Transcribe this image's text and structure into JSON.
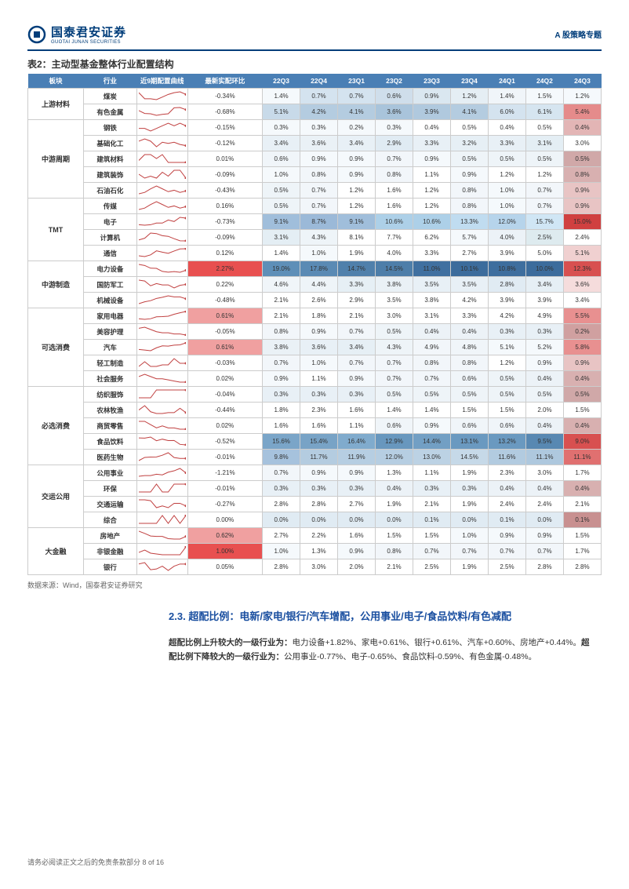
{
  "header": {
    "logo_cn": "国泰君安证券",
    "logo_en": "GUOTAI JUNAN SECURITIES",
    "right": "A 股策略专题"
  },
  "table_title": "表2：主动型基金整体行业配置结构",
  "headers": [
    "板块",
    "行业",
    "近9期配置曲线",
    "最新实配环比",
    "22Q3",
    "22Q4",
    "23Q1",
    "23Q2",
    "23Q3",
    "23Q4",
    "24Q1",
    "24Q2",
    "24Q3"
  ],
  "sectors": [
    {
      "name": "上游材料",
      "rows": [
        {
          "ind": "煤炭",
          "ratio": "-0.34%",
          "vals": [
            "1.4%",
            "0.7%",
            "0.7%",
            "0.6%",
            "0.9%",
            "1.2%",
            "1.4%",
            "1.5%",
            "1.2%"
          ],
          "cols": [
            "#f5f9fc",
            "#d4e3ef",
            "#d4e3ef",
            "#cfdeeb",
            "#dae7f0",
            "#e5eef4",
            "#f0f5f9",
            "#f5f9fc",
            "#f5f9fc"
          ],
          "rc": "#fff"
        },
        {
          "ind": "有色金属",
          "ratio": "-0.68%",
          "vals": [
            "5.1%",
            "4.2%",
            "4.1%",
            "3.6%",
            "3.9%",
            "4.1%",
            "6.0%",
            "6.1%",
            "5.4%"
          ],
          "cols": [
            "#c8dae9",
            "#b4cce0",
            "#b4cce0",
            "#a9c4db",
            "#b0c9de",
            "#b4cce0",
            "#d4e3ef",
            "#d6e5f0",
            "#e58b8b"
          ],
          "rc": "#fff"
        }
      ]
    },
    {
      "name": "中游周期",
      "rows": [
        {
          "ind": "钢铁",
          "ratio": "-0.15%",
          "vals": [
            "0.3%",
            "0.3%",
            "0.2%",
            "0.3%",
            "0.4%",
            "0.5%",
            "0.4%",
            "0.5%",
            "0.4%"
          ],
          "cols": [
            "#f5f9fc",
            "#f5f9fc",
            "#f5f9fc",
            "#f5f9fc",
            "#fff",
            "#fff",
            "#fff",
            "#fff",
            "#e3b5b5"
          ],
          "rc": "#fff"
        },
        {
          "ind": "基础化工",
          "ratio": "-0.12%",
          "vals": [
            "3.4%",
            "3.6%",
            "3.4%",
            "2.9%",
            "3.3%",
            "3.2%",
            "3.3%",
            "3.1%",
            "3.0%"
          ],
          "cols": [
            "#e8f0f6",
            "#eaf1f6",
            "#e8f0f6",
            "#e0ebf3",
            "#e8f0f6",
            "#e6eff5",
            "#e8f0f6",
            "#e4eef4",
            "#fff"
          ],
          "rc": "#fff"
        },
        {
          "ind": "建筑材料",
          "ratio": "0.01%",
          "vals": [
            "0.6%",
            "0.9%",
            "0.9%",
            "0.7%",
            "0.9%",
            "0.5%",
            "0.5%",
            "0.5%",
            "0.5%"
          ],
          "cols": [
            "#f0f5f9",
            "#f5f9fc",
            "#f5f9fc",
            "#f2f6fa",
            "#f5f9fc",
            "#eef4f8",
            "#eef4f8",
            "#eef4f8",
            "#d0a8a8"
          ],
          "rc": "#fff"
        },
        {
          "ind": "建筑装饰",
          "ratio": "-0.09%",
          "vals": [
            "1.0%",
            "0.8%",
            "0.9%",
            "0.8%",
            "1.1%",
            "0.9%",
            "1.2%",
            "1.2%",
            "0.8%"
          ],
          "cols": [
            "#f5f9fc",
            "#f2f6fa",
            "#f5f9fc",
            "#f2f6fa",
            "#fff",
            "#f5f9fc",
            "#fff",
            "#fff",
            "#d8b0b0"
          ],
          "rc": "#fff"
        },
        {
          "ind": "石油石化",
          "ratio": "-0.43%",
          "vals": [
            "0.5%",
            "0.7%",
            "1.2%",
            "1.6%",
            "1.2%",
            "0.8%",
            "1.0%",
            "0.7%",
            "0.9%"
          ],
          "cols": [
            "#eef4f8",
            "#f2f6fa",
            "#fff",
            "#fff",
            "#fff",
            "#f2f6fa",
            "#f5f9fc",
            "#f2f6fa",
            "#e8c4c4"
          ],
          "rc": "#fff"
        }
      ]
    },
    {
      "name": "TMT",
      "rows": [
        {
          "ind": "传媒",
          "ratio": "0.16%",
          "vals": [
            "0.5%",
            "0.7%",
            "1.2%",
            "1.6%",
            "1.2%",
            "0.8%",
            "1.0%",
            "0.7%",
            "0.9%"
          ],
          "cols": [
            "#eef4f8",
            "#f2f6fa",
            "#fff",
            "#fff",
            "#fff",
            "#f2f6fa",
            "#f5f9fc",
            "#f2f6fa",
            "#e8c4c4"
          ],
          "rc": "#fff"
        },
        {
          "ind": "电子",
          "ratio": "-0.73%",
          "vals": [
            "9.1%",
            "8.7%",
            "9.1%",
            "10.6%",
            "10.6%",
            "13.3%",
            "12.0%",
            "15.7%",
            "15.0%"
          ],
          "cols": [
            "#a0bedb",
            "#9bb9d8",
            "#a0bedb",
            "#add0e8",
            "#add0e8",
            "#c0dcf0",
            "#b6d4eb",
            "#d0e6f5",
            "#d04040"
          ],
          "rc": "#fff"
        },
        {
          "ind": "计算机",
          "ratio": "-0.09%",
          "vals": [
            "3.1%",
            "4.3%",
            "8.1%",
            "7.7%",
            "6.2%",
            "5.7%",
            "4.0%",
            "2.5%",
            "2.4%"
          ],
          "cols": [
            "#e4eef4",
            "#eef4f8",
            "#fff",
            "#fff",
            "#fff",
            "#f5f9fc",
            "#ecf2f7",
            "#deebef",
            "#fff"
          ],
          "rc": "#fff"
        },
        {
          "ind": "通信",
          "ratio": "0.12%",
          "vals": [
            "1.4%",
            "1.0%",
            "1.9%",
            "4.0%",
            "3.3%",
            "2.7%",
            "3.9%",
            "5.0%",
            "5.1%"
          ],
          "cols": [
            "#fff",
            "#f5f9fc",
            "#fff",
            "#fff",
            "#fff",
            "#fff",
            "#fff",
            "#fff",
            "#f0d0d0"
          ],
          "rc": "#fff"
        }
      ]
    },
    {
      "name": "中游制造",
      "rows": [
        {
          "ind": "电力设备",
          "ratio": "2.27%",
          "vals": [
            "19.0%",
            "17.8%",
            "14.7%",
            "14.5%",
            "11.0%",
            "10.1%",
            "10.8%",
            "10.0%",
            "12.3%"
          ],
          "cols": [
            "#5e8fb8",
            "#5a8ab4",
            "#5080ab",
            "#4e7ea9",
            "#4070a0",
            "#3c6c9c",
            "#3e6e9e",
            "#3c6c9c",
            "#d85050"
          ],
          "rc": "#e85050"
        },
        {
          "ind": "国防军工",
          "ratio": "0.22%",
          "vals": [
            "4.6%",
            "4.4%",
            "3.3%",
            "3.8%",
            "3.5%",
            "3.5%",
            "2.8%",
            "3.4%",
            "3.6%"
          ],
          "cols": [
            "#f0f5f9",
            "#eef4f8",
            "#e6eff5",
            "#eaf1f6",
            "#e8f0f6",
            "#e8f0f6",
            "#e0ebf3",
            "#e6eff5",
            "#f5dcdc"
          ],
          "rc": "#fff"
        },
        {
          "ind": "机械设备",
          "ratio": "-0.48%",
          "vals": [
            "2.1%",
            "2.6%",
            "2.9%",
            "3.5%",
            "3.8%",
            "4.2%",
            "3.9%",
            "3.9%",
            "3.4%"
          ],
          "cols": [
            "#fff",
            "#fff",
            "#fff",
            "#fff",
            "#fff",
            "#fff",
            "#fff",
            "#fff",
            "#fff"
          ],
          "rc": "#fff"
        }
      ]
    },
    {
      "name": "可选消费",
      "rows": [
        {
          "ind": "家用电器",
          "ratio": "0.61%",
          "vals": [
            "2.1%",
            "1.8%",
            "2.1%",
            "3.0%",
            "3.1%",
            "3.3%",
            "4.2%",
            "4.9%",
            "5.5%"
          ],
          "cols": [
            "#fff",
            "#fff",
            "#fff",
            "#fff",
            "#fff",
            "#fff",
            "#fff",
            "#fff",
            "#e89090"
          ],
          "rc": "#f0a0a0"
        },
        {
          "ind": "美容护理",
          "ratio": "-0.05%",
          "vals": [
            "0.8%",
            "0.9%",
            "0.7%",
            "0.5%",
            "0.4%",
            "0.4%",
            "0.3%",
            "0.3%",
            "0.2%"
          ],
          "cols": [
            "#f2f6fa",
            "#f5f9fc",
            "#f2f6fa",
            "#eef4f8",
            "#ecf2f7",
            "#ecf2f7",
            "#e8f0f6",
            "#e8f0f6",
            "#d0a0a0"
          ],
          "rc": "#fff"
        },
        {
          "ind": "汽车",
          "ratio": "0.61%",
          "vals": [
            "3.8%",
            "3.6%",
            "3.4%",
            "4.3%",
            "4.9%",
            "4.8%",
            "5.1%",
            "5.2%",
            "5.8%"
          ],
          "cols": [
            "#eaf1f6",
            "#e8f0f6",
            "#e6eff5",
            "#eef4f8",
            "#f2f6fa",
            "#f0f5f9",
            "#f5f9fc",
            "#f5f9fc",
            "#e89090"
          ],
          "rc": "#f0a0a0"
        },
        {
          "ind": "轻工制造",
          "ratio": "-0.03%",
          "vals": [
            "0.7%",
            "1.0%",
            "0.7%",
            "0.7%",
            "0.8%",
            "0.8%",
            "1.2%",
            "0.9%",
            "0.9%"
          ],
          "cols": [
            "#f2f6fa",
            "#f5f9fc",
            "#f2f6fa",
            "#f2f6fa",
            "#f2f6fa",
            "#f2f6fa",
            "#fff",
            "#f5f9fc",
            "#e8c4c4"
          ],
          "rc": "#fff"
        },
        {
          "ind": "社会服务",
          "ratio": "0.02%",
          "vals": [
            "0.9%",
            "1.1%",
            "0.9%",
            "0.7%",
            "0.7%",
            "0.6%",
            "0.5%",
            "0.4%",
            "0.4%"
          ],
          "cols": [
            "#f5f9fc",
            "#fff",
            "#f5f9fc",
            "#f2f6fa",
            "#f2f6fa",
            "#f0f5f9",
            "#eef4f8",
            "#ecf2f7",
            "#d8b0b0"
          ],
          "rc": "#fff"
        }
      ]
    },
    {
      "name": "必选消费",
      "rows": [
        {
          "ind": "纺织服饰",
          "ratio": "-0.04%",
          "vals": [
            "0.3%",
            "0.3%",
            "0.3%",
            "0.5%",
            "0.5%",
            "0.5%",
            "0.5%",
            "0.5%",
            "0.5%"
          ],
          "cols": [
            "#e8f0f6",
            "#e8f0f6",
            "#e8f0f6",
            "#eef4f8",
            "#eef4f8",
            "#eef4f8",
            "#eef4f8",
            "#eef4f8",
            "#d0a8a8"
          ],
          "rc": "#fff"
        },
        {
          "ind": "农林牧渔",
          "ratio": "-0.44%",
          "vals": [
            "1.8%",
            "2.3%",
            "1.6%",
            "1.4%",
            "1.4%",
            "1.5%",
            "1.5%",
            "2.0%",
            "1.5%"
          ],
          "cols": [
            "#fff",
            "#fff",
            "#fff",
            "#fff",
            "#fff",
            "#fff",
            "#fff",
            "#fff",
            "#fff"
          ],
          "rc": "#fff"
        },
        {
          "ind": "商贸零售",
          "ratio": "0.02%",
          "vals": [
            "1.6%",
            "1.6%",
            "1.1%",
            "0.6%",
            "0.9%",
            "0.6%",
            "0.6%",
            "0.4%",
            "0.4%"
          ],
          "cols": [
            "#fff",
            "#fff",
            "#fff",
            "#f0f5f9",
            "#f5f9fc",
            "#f0f5f9",
            "#f0f5f9",
            "#ecf2f7",
            "#d8b0b0"
          ],
          "rc": "#fff"
        },
        {
          "ind": "食品饮料",
          "ratio": "-0.52%",
          "vals": [
            "15.6%",
            "15.4%",
            "16.4%",
            "12.9%",
            "14.4%",
            "13.1%",
            "13.2%",
            "9.5%",
            "9.0%"
          ],
          "cols": [
            "#7aa5c8",
            "#78a3c6",
            "#80abcd",
            "#6897be",
            "#729fc4",
            "#6a99c0",
            "#6a99c0",
            "#5888b2",
            "#d85050"
          ],
          "rc": "#fff"
        },
        {
          "ind": "医药生物",
          "ratio": "-0.01%",
          "vals": [
            "9.8%",
            "11.7%",
            "11.9%",
            "12.0%",
            "13.0%",
            "14.5%",
            "11.6%",
            "11.1%",
            "11.1%"
          ],
          "cols": [
            "#a6c2dd",
            "#b4cce0",
            "#b6cee2",
            "#b6cee2",
            "#bcd2e4",
            "#c6d9e8",
            "#b2cbe0",
            "#aec8de",
            "#e07070"
          ],
          "rc": "#fff"
        }
      ]
    },
    {
      "name": "交运公用",
      "rows": [
        {
          "ind": "公用事业",
          "ratio": "-1.21%",
          "vals": [
            "0.7%",
            "0.9%",
            "0.9%",
            "1.3%",
            "1.1%",
            "1.9%",
            "2.3%",
            "3.0%",
            "1.7%"
          ],
          "cols": [
            "#f2f6fa",
            "#f5f9fc",
            "#f5f9fc",
            "#fff",
            "#fff",
            "#fff",
            "#fff",
            "#fff",
            "#fff"
          ],
          "rc": "#fff"
        },
        {
          "ind": "环保",
          "ratio": "-0.01%",
          "vals": [
            "0.3%",
            "0.3%",
            "0.3%",
            "0.4%",
            "0.3%",
            "0.3%",
            "0.4%",
            "0.4%",
            "0.4%"
          ],
          "cols": [
            "#e8f0f6",
            "#e8f0f6",
            "#e8f0f6",
            "#ecf2f7",
            "#e8f0f6",
            "#e8f0f6",
            "#ecf2f7",
            "#ecf2f7",
            "#d8b0b0"
          ],
          "rc": "#fff"
        },
        {
          "ind": "交通运输",
          "ratio": "-0.27%",
          "vals": [
            "2.8%",
            "2.8%",
            "2.7%",
            "1.9%",
            "2.1%",
            "1.9%",
            "2.4%",
            "2.4%",
            "2.1%"
          ],
          "cols": [
            "#fff",
            "#fff",
            "#fff",
            "#fff",
            "#fff",
            "#fff",
            "#fff",
            "#fff",
            "#fff"
          ],
          "rc": "#fff"
        },
        {
          "ind": "综合",
          "ratio": "0.00%",
          "vals": [
            "0.0%",
            "0.0%",
            "0.0%",
            "0.0%",
            "0.1%",
            "0.0%",
            "0.1%",
            "0.0%",
            "0.1%"
          ],
          "cols": [
            "#e0ebf3",
            "#e0ebf3",
            "#e0ebf3",
            "#e0ebf3",
            "#e0ebf3",
            "#e0ebf3",
            "#e0ebf3",
            "#e0ebf3",
            "#c89090"
          ],
          "rc": "#fff"
        }
      ]
    },
    {
      "name": "大金融",
      "rows": [
        {
          "ind": "房地产",
          "ratio": "0.62%",
          "vals": [
            "2.7%",
            "2.2%",
            "1.6%",
            "1.5%",
            "1.5%",
            "1.0%",
            "0.9%",
            "0.9%",
            "1.5%"
          ],
          "cols": [
            "#fff",
            "#fff",
            "#fff",
            "#fff",
            "#fff",
            "#f5f9fc",
            "#f5f9fc",
            "#f5f9fc",
            "#fff"
          ],
          "rc": "#f0a0a0"
        },
        {
          "ind": "非银金融",
          "ratio": "1.00%",
          "vals": [
            "1.0%",
            "1.3%",
            "0.9%",
            "0.8%",
            "0.7%",
            "0.7%",
            "0.7%",
            "0.7%",
            "1.7%"
          ],
          "cols": [
            "#f5f9fc",
            "#fff",
            "#f5f9fc",
            "#f2f6fa",
            "#f2f6fa",
            "#f2f6fa",
            "#f2f6fa",
            "#f2f6fa",
            "#fff"
          ],
          "rc": "#e85050"
        },
        {
          "ind": "银行",
          "ratio": "0.05%",
          "vals": [
            "2.8%",
            "3.0%",
            "2.0%",
            "2.1%",
            "2.5%",
            "1.9%",
            "2.5%",
            "2.8%",
            "2.8%"
          ],
          "cols": [
            "#fff",
            "#fff",
            "#fff",
            "#fff",
            "#fff",
            "#fff",
            "#fff",
            "#fff",
            "#fff"
          ],
          "rc": "#fff"
        }
      ]
    }
  ],
  "source": "数据来源：Wind，国泰君安证券研究",
  "section": {
    "num": "2.3.",
    "title": "超配比例：电新/家电/银行/汽车增配，公用事业/电子/食品饮料/有色减配"
  },
  "body": {
    "p1": "超配比例上升较大的一级行业为：",
    "p2": "电力设备+1.82%、家电+0.61%、银行+0.61%、汽车+0.60%、房地产+0.44%。",
    "p3": "超配比例下降较大的一级行业为：",
    "p4": "公用事业-0.77%、电子-0.65%、食品饮料-0.59%、有色金属-0.48%。"
  },
  "footer": "请务必阅读正文之后的免责条款部分   8 of 16"
}
